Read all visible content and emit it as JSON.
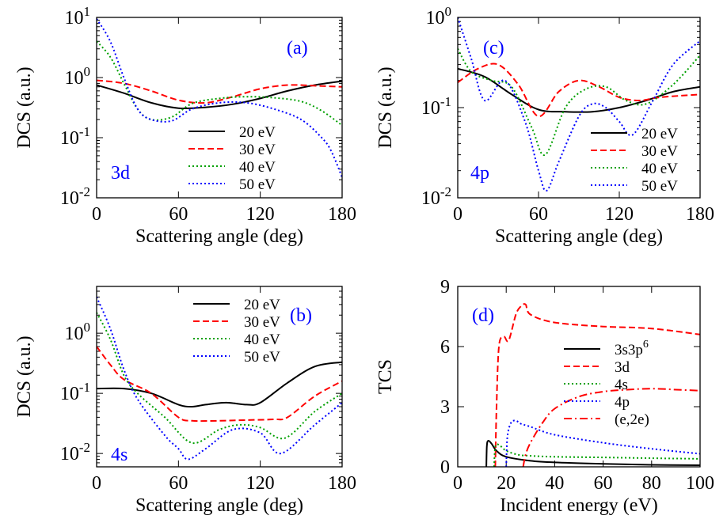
{
  "chart_data": [
    {
      "panel": "(a)",
      "inset_label": "3d",
      "type": "line",
      "xlabel": "Scattering angle (deg)",
      "ylabel": "DCS (a.u.)",
      "xlim": [
        0,
        180
      ],
      "ylim": [
        0.01,
        10
      ],
      "yscale": "log",
      "xticks": [
        "0",
        "60",
        "120",
        "180"
      ],
      "yticks": [
        {
          "base": "10",
          "exp": "-2"
        },
        {
          "base": "10",
          "exp": "-1"
        },
        {
          "base": "10",
          "exp": "0"
        },
        {
          "base": "10",
          "exp": "1"
        }
      ],
      "legend_position": "center-right",
      "series": [
        {
          "name": "20 eV",
          "color": "#000000",
          "dash": "solid",
          "x": [
            0,
            20,
            40,
            60,
            80,
            100,
            120,
            140,
            160,
            180
          ],
          "y": [
            0.75,
            0.55,
            0.38,
            0.31,
            0.32,
            0.36,
            0.45,
            0.6,
            0.75,
            0.87
          ]
        },
        {
          "name": "30 eV",
          "color": "#ff0000",
          "dash": "dashed",
          "x": [
            0,
            20,
            40,
            60,
            80,
            100,
            120,
            140,
            160,
            180
          ],
          "y": [
            0.9,
            0.8,
            0.6,
            0.42,
            0.38,
            0.48,
            0.65,
            0.75,
            0.73,
            0.7
          ]
        },
        {
          "name": "40 eV",
          "color": "#00a000",
          "dash": "dotted",
          "x": [
            0,
            10,
            20,
            30,
            40,
            55,
            70,
            90,
            110,
            130,
            150,
            165,
            180
          ],
          "y": [
            4.0,
            2.2,
            0.8,
            0.3,
            0.2,
            0.22,
            0.37,
            0.45,
            0.48,
            0.46,
            0.4,
            0.28,
            0.16
          ]
        },
        {
          "name": "50 eV",
          "color": "#0000ff",
          "dash": "dotted",
          "x": [
            0,
            10,
            20,
            30,
            40,
            55,
            70,
            90,
            110,
            130,
            150,
            165,
            172,
            180
          ],
          "y": [
            9.5,
            4.0,
            1.0,
            0.3,
            0.2,
            0.19,
            0.3,
            0.38,
            0.38,
            0.3,
            0.2,
            0.1,
            0.06,
            0.022
          ]
        }
      ]
    },
    {
      "panel": "(c)",
      "inset_label": "4p",
      "type": "line",
      "xlabel": "Scattering angle (deg)",
      "ylabel": "DCS (a.u.)",
      "xlim": [
        0,
        180
      ],
      "ylim": [
        0.01,
        1
      ],
      "yscale": "log",
      "xticks": [
        "0",
        "60",
        "120",
        "180"
      ],
      "yticks": [
        {
          "base": "10",
          "exp": "-2"
        },
        {
          "base": "10",
          "exp": "-1"
        },
        {
          "base": "10",
          "exp": "0"
        }
      ],
      "legend_position": "bottom-right",
      "series": [
        {
          "name": "20 eV",
          "color": "#000000",
          "dash": "solid",
          "x": [
            0,
            20,
            40,
            60,
            80,
            100,
            120,
            140,
            160,
            180
          ],
          "y": [
            0.27,
            0.22,
            0.14,
            0.095,
            0.09,
            0.09,
            0.1,
            0.12,
            0.15,
            0.17
          ]
        },
        {
          "name": "30 eV",
          "color": "#ff0000",
          "dash": "dashed",
          "x": [
            0,
            15,
            30,
            45,
            60,
            75,
            90,
            105,
            120,
            135,
            150,
            180
          ],
          "y": [
            0.19,
            0.27,
            0.3,
            0.18,
            0.08,
            0.15,
            0.2,
            0.17,
            0.13,
            0.12,
            0.13,
            0.14
          ]
        },
        {
          "name": "40 eV",
          "color": "#00a000",
          "dash": "dotted",
          "x": [
            0,
            10,
            25,
            40,
            55,
            65,
            80,
            95,
            110,
            125,
            140,
            160,
            180
          ],
          "y": [
            0.45,
            0.25,
            0.2,
            0.17,
            0.06,
            0.03,
            0.1,
            0.16,
            0.17,
            0.12,
            0.11,
            0.18,
            0.38
          ]
        },
        {
          "name": "50 eV",
          "color": "#0000ff",
          "dash": "dotted",
          "x": [
            0,
            10,
            20,
            35,
            50,
            60,
            66,
            75,
            90,
            100,
            110,
            120,
            130,
            145,
            160,
            180
          ],
          "y": [
            1.0,
            0.35,
            0.12,
            0.2,
            0.07,
            0.02,
            0.012,
            0.025,
            0.08,
            0.11,
            0.1,
            0.07,
            0.05,
            0.12,
            0.3,
            0.55
          ]
        }
      ]
    },
    {
      "panel": "(b)",
      "inset_label": "4s",
      "type": "line",
      "xlabel": "Scattering angle (deg)",
      "ylabel": "DCS (a.u.)",
      "xlim": [
        0,
        180
      ],
      "ylim": [
        0.006,
        6
      ],
      "yscale": "log",
      "xticks": [
        "0",
        "60",
        "120",
        "180"
      ],
      "yticks": [
        {
          "base": "10",
          "exp": "-2"
        },
        {
          "base": "10",
          "exp": "-1"
        },
        {
          "base": "10",
          "exp": "0"
        }
      ],
      "legend_position": "top-right",
      "series": [
        {
          "name": "20 eV",
          "color": "#000000",
          "dash": "solid",
          "x": [
            0,
            20,
            40,
            60,
            70,
            80,
            95,
            110,
            120,
            140,
            160,
            180
          ],
          "y": [
            0.12,
            0.12,
            0.1,
            0.065,
            0.06,
            0.065,
            0.07,
            0.065,
            0.07,
            0.15,
            0.28,
            0.33
          ]
        },
        {
          "name": "30 eV",
          "color": "#ff0000",
          "dash": "dashed",
          "x": [
            0,
            10,
            20,
            40,
            60,
            70,
            90,
            110,
            130,
            140,
            160,
            180
          ],
          "y": [
            0.6,
            0.3,
            0.17,
            0.1,
            0.04,
            0.035,
            0.035,
            0.036,
            0.037,
            0.04,
            0.09,
            0.16
          ]
        },
        {
          "name": "40 eV",
          "color": "#00a000",
          "dash": "dotted",
          "x": [
            0,
            10,
            20,
            30,
            50,
            70,
            90,
            105,
            120,
            138,
            160,
            180
          ],
          "y": [
            2.2,
            0.8,
            0.2,
            0.1,
            0.04,
            0.015,
            0.025,
            0.03,
            0.027,
            0.018,
            0.05,
            0.1
          ]
        },
        {
          "name": "50 eV",
          "color": "#0000ff",
          "dash": "dotted",
          "x": [
            0,
            10,
            20,
            30,
            50,
            60,
            67,
            80,
            100,
            120,
            135,
            160,
            180
          ],
          "y": [
            4.0,
            1.2,
            0.25,
            0.08,
            0.02,
            0.012,
            0.008,
            0.012,
            0.025,
            0.022,
            0.01,
            0.03,
            0.07
          ]
        }
      ]
    },
    {
      "panel": "(d)",
      "type": "line",
      "xlabel": "Incident energy (eV)",
      "ylabel": "TCS",
      "xlim": [
        0,
        100
      ],
      "ylim": [
        0,
        9
      ],
      "yscale": "linear",
      "xticks": [
        "0",
        "20",
        "40",
        "60",
        "80",
        "100"
      ],
      "yticks": [
        "0",
        "3",
        "6",
        "9"
      ],
      "legend_position": "center-right",
      "series": [
        {
          "name": "3s3p",
          "name_sup": "6",
          "color": "#000000",
          "dash": "solid",
          "x": [
            11.8,
            12.0,
            12.5,
            14,
            16,
            20,
            30,
            40,
            60,
            80,
            100
          ],
          "y": [
            0,
            1.0,
            1.3,
            1.15,
            0.8,
            0.5,
            0.3,
            0.22,
            0.15,
            0.1,
            0.08
          ]
        },
        {
          "name": "3d",
          "color": "#ff0000",
          "dash": "dashed",
          "x": [
            15.5,
            16,
            17,
            19,
            21,
            24,
            26,
            28,
            30,
            40,
            60,
            80,
            100
          ],
          "y": [
            0,
            3.0,
            6.0,
            6.5,
            6.3,
            7.6,
            8.0,
            8.1,
            7.6,
            7.2,
            7.0,
            6.9,
            6.6
          ]
        },
        {
          "name": "4s",
          "color": "#00a000",
          "dash": "dotted",
          "x": [
            15,
            15.5,
            17,
            20,
            25,
            30,
            40,
            60,
            80,
            100
          ],
          "y": [
            0,
            1.0,
            1.1,
            0.8,
            0.6,
            0.55,
            0.5,
            0.47,
            0.43,
            0.4
          ]
        },
        {
          "name": "4p",
          "color": "#0000ff",
          "dash": "dotted",
          "x": [
            20,
            20.5,
            22,
            24,
            26,
            30,
            40,
            60,
            80,
            100
          ],
          "y": [
            0,
            1.5,
            2.2,
            2.3,
            2.15,
            2.0,
            1.6,
            1.2,
            0.9,
            0.65
          ]
        },
        {
          "name": "(e,2e)",
          "color": "#ff0000",
          "dash": "dashdot",
          "x": [
            27,
            28,
            30,
            35,
            40,
            50,
            60,
            70,
            80,
            90,
            100
          ],
          "y": [
            0,
            0.6,
            1.2,
            2.2,
            2.9,
            3.5,
            3.75,
            3.85,
            3.9,
            3.85,
            3.8
          ]
        }
      ]
    }
  ],
  "panel_labels": {
    "a": "(a)",
    "b": "(b)",
    "c": "(c)",
    "d": "(d)"
  },
  "orbital_labels": {
    "a": "3d",
    "b": "4s",
    "c": "4p"
  }
}
